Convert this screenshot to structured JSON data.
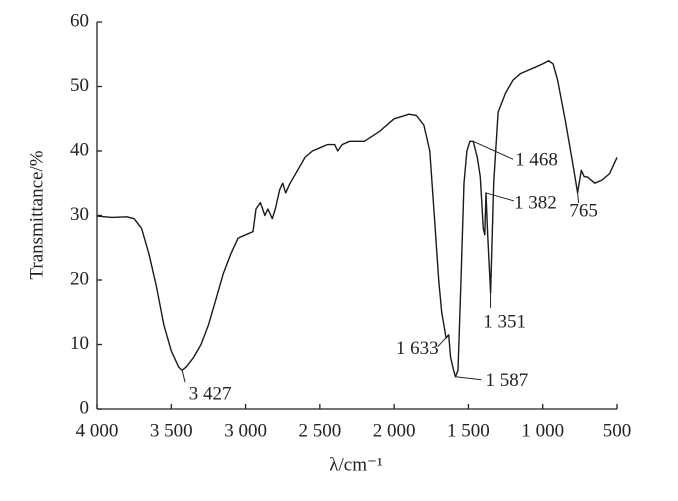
{
  "chart_data": {
    "type": "line",
    "xlabel": "λ/cm⁻¹",
    "ylabel": "Transmittance/%",
    "xlim": [
      4000,
      500
    ],
    "ylim": [
      0,
      60
    ],
    "xticks": [
      {
        "value": 4000,
        "label": "4 000"
      },
      {
        "value": 3500,
        "label": "3 500"
      },
      {
        "value": 3000,
        "label": "3 000"
      },
      {
        "value": 2500,
        "label": "2 500"
      },
      {
        "value": 2000,
        "label": "2 000"
      },
      {
        "value": 1500,
        "label": "1 500"
      },
      {
        "value": 1000,
        "label": "1 000"
      },
      {
        "value": 500,
        "label": "500"
      }
    ],
    "yticks": [
      0,
      10,
      20,
      30,
      40,
      50,
      60
    ],
    "color": "#1a1a1a",
    "x": [
      4000,
      3900,
      3800,
      3750,
      3700,
      3650,
      3600,
      3550,
      3500,
      3450,
      3427,
      3400,
      3350,
      3300,
      3250,
      3200,
      3150,
      3100,
      3050,
      3000,
      2950,
      2930,
      2900,
      2870,
      2850,
      2820,
      2800,
      2770,
      2750,
      2730,
      2700,
      2650,
      2600,
      2550,
      2500,
      2450,
      2400,
      2380,
      2350,
      2300,
      2200,
      2100,
      2000,
      1900,
      1850,
      1800,
      1760,
      1730,
      1700,
      1680,
      1650,
      1633,
      1620,
      1600,
      1587,
      1570,
      1550,
      1530,
      1510,
      1490,
      1468,
      1440,
      1420,
      1400,
      1390,
      1382,
      1370,
      1351,
      1330,
      1300,
      1250,
      1200,
      1150,
      1100,
      1050,
      1000,
      960,
      930,
      900,
      850,
      820,
      790,
      765,
      740,
      720,
      700,
      650,
      600,
      550,
      500
    ],
    "values": [
      29.9,
      29.7,
      29.8,
      29.5,
      28,
      24,
      19,
      13,
      9,
      6.5,
      6,
      6.5,
      8,
      10,
      13,
      17,
      21,
      24,
      26.5,
      27,
      27.5,
      31,
      32,
      30,
      31,
      29.5,
      31,
      34,
      35,
      33.5,
      35,
      37,
      39,
      40,
      40.5,
      41,
      41,
      40,
      41,
      41.5,
      41.5,
      43,
      45,
      45.7,
      45.5,
      44,
      40,
      30,
      20,
      15,
      11,
      11.5,
      8,
      6,
      5,
      6,
      20,
      35,
      40,
      41.5,
      41.5,
      39,
      36,
      28,
      27,
      33.5,
      27,
      18,
      35,
      46,
      49,
      51,
      52,
      52.5,
      53,
      53.5,
      54,
      53.5,
      51,
      45,
      41,
      37,
      33.5,
      37,
      36,
      36,
      35,
      35.5,
      36.5,
      39
    ],
    "annotations": [
      {
        "value": 3427,
        "label": "3 427"
      },
      {
        "value": 1633,
        "label": "1 633"
      },
      {
        "value": 1587,
        "label": "1 587"
      },
      {
        "value": 1468,
        "label": "1 468"
      },
      {
        "value": 1382,
        "label": "1 382"
      },
      {
        "value": 1351,
        "label": "1 351"
      },
      {
        "value": 765,
        "label": "765"
      }
    ]
  }
}
